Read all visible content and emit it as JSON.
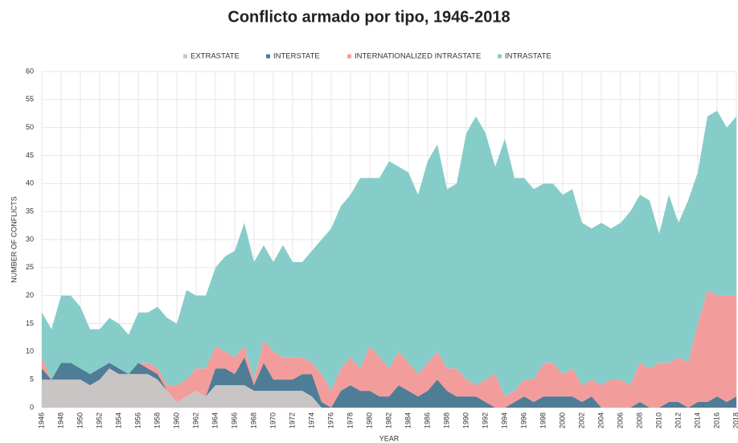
{
  "chart_data": {
    "type": "stacked_area",
    "title": "Conflicto armado por tipo, 1946-2018",
    "xlabel": "YEAR",
    "ylabel": "NUMBER OF CONFLICTS",
    "x": [
      1946,
      1947,
      1948,
      1949,
      1950,
      1951,
      1952,
      1953,
      1954,
      1955,
      1956,
      1957,
      1958,
      1959,
      1960,
      1961,
      1962,
      1963,
      1964,
      1965,
      1966,
      1967,
      1968,
      1969,
      1970,
      1971,
      1972,
      1973,
      1974,
      1975,
      1976,
      1977,
      1978,
      1979,
      1980,
      1981,
      1982,
      1983,
      1984,
      1985,
      1986,
      1987,
      1988,
      1989,
      1990,
      1991,
      1992,
      1993,
      1994,
      1995,
      1996,
      1997,
      1998,
      1999,
      2000,
      2001,
      2002,
      2003,
      2004,
      2005,
      2006,
      2007,
      2008,
      2009,
      2010,
      2011,
      2012,
      2013,
      2014,
      2015,
      2016,
      2017,
      2018
    ],
    "series": [
      {
        "name": "EXTRASTATE",
        "color": "#c9c5c5",
        "values": [
          5,
          5,
          5,
          5,
          5,
          4,
          5,
          7,
          6,
          6,
          6,
          6,
          5,
          3,
          1,
          2,
          3,
          2,
          4,
          4,
          4,
          4,
          3,
          3,
          3,
          3,
          3,
          3,
          2,
          0,
          0,
          0,
          0,
          0,
          0,
          0,
          0,
          0,
          0,
          0,
          0,
          0,
          0,
          0,
          0,
          0,
          0,
          0,
          0,
          0,
          0,
          0,
          0,
          0,
          0,
          0,
          0,
          0,
          0,
          0,
          0,
          0,
          0,
          0,
          0,
          0,
          0,
          0,
          0,
          0,
          0,
          0,
          0
        ]
      },
      {
        "name": "INTERSTATE",
        "color": "#4f7d96",
        "values": [
          2,
          0,
          3,
          3,
          2,
          2,
          2,
          1,
          1,
          0,
          2,
          1,
          1,
          0,
          0,
          0,
          0,
          0,
          3,
          3,
          2,
          5,
          1,
          5,
          2,
          2,
          2,
          3,
          4,
          1,
          0,
          3,
          4,
          3,
          3,
          2,
          2,
          4,
          3,
          2,
          3,
          5,
          3,
          2,
          2,
          2,
          1,
          0,
          0,
          1,
          2,
          1,
          2,
          2,
          2,
          2,
          1,
          2,
          0,
          0,
          0,
          0,
          1,
          0,
          0,
          1,
          1,
          0,
          1,
          1,
          2,
          1,
          2
        ]
      },
      {
        "name": "INTERNATIONALIZED INTRASTATE",
        "color": "#f39c9c",
        "values": [
          2,
          0,
          0,
          0,
          0,
          0,
          0,
          0,
          0,
          0,
          0,
          1,
          1,
          1,
          3,
          3,
          4,
          5,
          4,
          3,
          3,
          2,
          1,
          4,
          5,
          4,
          4,
          3,
          2,
          5,
          3,
          4,
          5,
          4,
          8,
          7,
          5,
          6,
          5,
          4,
          5,
          5,
          4,
          5,
          3,
          2,
          4,
          6,
          2,
          2,
          3,
          4,
          6,
          6,
          4,
          5,
          3,
          3,
          4,
          5,
          5,
          4,
          7,
          7,
          8,
          7,
          8,
          8,
          14,
          20,
          18,
          19,
          18
        ]
      },
      {
        "name": "INTRASTATE",
        "color": "#86cdc9",
        "values": [
          8,
          9,
          12,
          12,
          11,
          8,
          7,
          8,
          8,
          7,
          9,
          9,
          11,
          12,
          11,
          16,
          13,
          13,
          14,
          17,
          19,
          22,
          21,
          17,
          16,
          20,
          17,
          17,
          20,
          24,
          29,
          29,
          29,
          34,
          30,
          32,
          37,
          33,
          34,
          32,
          36,
          37,
          32,
          33,
          44,
          48,
          44,
          37,
          46,
          38,
          36,
          34,
          32,
          32,
          32,
          32,
          29,
          27,
          29,
          27,
          28,
          31,
          30,
          30,
          23,
          30,
          24,
          29,
          27,
          31,
          33,
          30,
          32
        ]
      }
    ],
    "xlim": [
      1946,
      2018
    ],
    "xticks": [
      1946,
      1948,
      1950,
      1952,
      1954,
      1956,
      1958,
      1960,
      1962,
      1964,
      1966,
      1968,
      1970,
      1972,
      1974,
      1976,
      1978,
      1980,
      1982,
      1984,
      1986,
      1988,
      1990,
      1992,
      1994,
      1996,
      1998,
      2000,
      2002,
      2004,
      2006,
      2008,
      2010,
      2012,
      2014,
      2016,
      2018
    ],
    "ylim": [
      0,
      60
    ],
    "yticks": [
      0,
      5,
      10,
      15,
      20,
      25,
      30,
      35,
      40,
      45,
      50,
      55,
      60
    ],
    "grid": true,
    "legend": "top"
  }
}
